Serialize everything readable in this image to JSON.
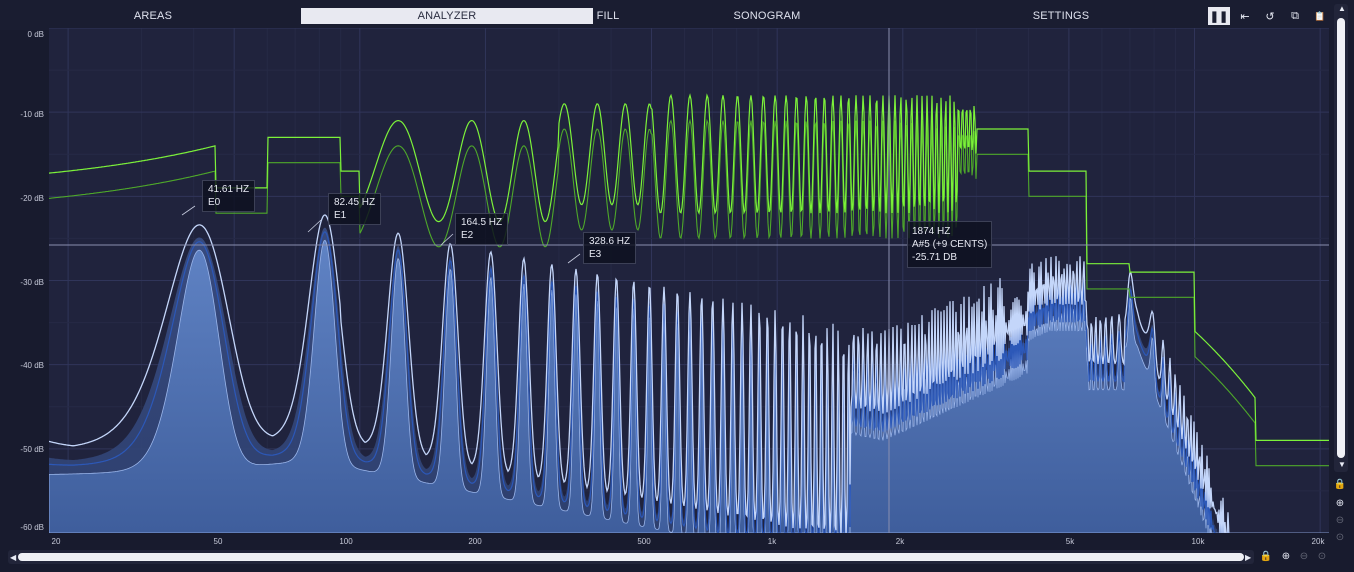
{
  "tabs": [
    {
      "label": "AREAS",
      "active": false
    },
    {
      "label": "ANALYZER",
      "active": true
    },
    {
      "label": "FILL",
      "active": false
    },
    {
      "label": "SONOGRAM",
      "active": false
    },
    {
      "label": "SETTINGS",
      "active": false
    }
  ],
  "toolbar": [
    {
      "name": "pause-icon",
      "glyph": "❚❚",
      "active": true
    },
    {
      "name": "collapse-left-icon",
      "glyph": "⇤",
      "active": false
    },
    {
      "name": "reset-icon",
      "glyph": "↺",
      "active": false
    },
    {
      "name": "copy-icon",
      "glyph": "⧉",
      "active": false
    },
    {
      "name": "paste-icon",
      "glyph": "📋",
      "active": false
    }
  ],
  "y_axis": [
    "0 dB",
    "-10 dB",
    "-20 dB",
    "-30 dB",
    "-40 dB",
    "-50 dB",
    "-60 dB"
  ],
  "x_axis": [
    "20",
    "50",
    "100",
    "200",
    "500",
    "1k",
    "2k",
    "5k",
    "10k",
    "20k"
  ],
  "tooltips": [
    {
      "line1": "41.61 HZ",
      "line2": "E0"
    },
    {
      "line1": "82.45 HZ",
      "line2": "E1"
    },
    {
      "line1": "164.5 HZ",
      "line2": "E2"
    },
    {
      "line1": "328.6 HZ",
      "line2": "E3"
    }
  ],
  "cursor": {
    "line1": "1874 HZ",
    "line2": "A#5 (+9 CENTS)",
    "line3": "-25.71 DB"
  },
  "side_controls": [
    {
      "name": "lock-icon",
      "glyph": "🔒"
    },
    {
      "name": "zoom-in-icon",
      "glyph": "⊕"
    },
    {
      "name": "zoom-out-icon",
      "glyph": "⊖"
    },
    {
      "name": "zoom-reset-icon",
      "glyph": "⊙"
    }
  ],
  "bottom_controls": [
    {
      "name": "lock-icon",
      "glyph": "🔒"
    },
    {
      "name": "zoom-in-icon",
      "glyph": "⊕"
    },
    {
      "name": "zoom-out-icon",
      "glyph": "⊖"
    },
    {
      "name": "zoom-reset-icon",
      "glyph": "⊙"
    }
  ],
  "colors": {
    "green_peak": "#7cf23a",
    "green_avg": "#4ea82a",
    "blue_fill": "#4d6fae",
    "blue_line": "#b8ccf5",
    "blue_dark": "#2c4f9a",
    "grid": "#2c3050",
    "cursor_line": "#8a8fb0"
  }
}
